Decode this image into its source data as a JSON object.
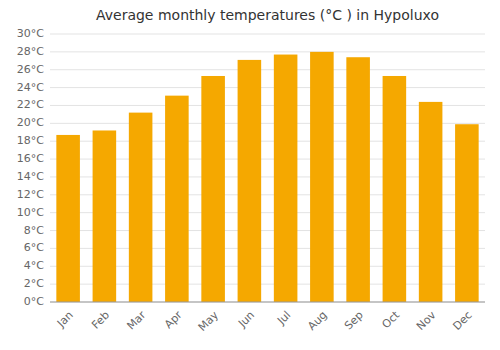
{
  "chart_data": {
    "type": "bar",
    "title": "Average monthly temperatures (°C ) in Hypoluxo",
    "categories": [
      "Jan",
      "Feb",
      "Mar",
      "Apr",
      "May",
      "Jun",
      "Jul",
      "Aug",
      "Sep",
      "Oct",
      "Nov",
      "Dec"
    ],
    "values": [
      18.7,
      19.2,
      21.2,
      23.1,
      25.3,
      27.1,
      27.7,
      28.0,
      27.4,
      25.3,
      22.4,
      19.9
    ],
    "color": "#F5A800",
    "ylim": [
      0,
      30
    ],
    "yticks": [
      {
        "value": 0,
        "label": "0°C"
      },
      {
        "value": 2,
        "label": "2°C"
      },
      {
        "value": 4,
        "label": "4°C"
      },
      {
        "value": 6,
        "label": "6°C"
      },
      {
        "value": 8,
        "label": "8°C"
      },
      {
        "value": 10,
        "label": "10°C"
      },
      {
        "value": 12,
        "label": "12°C"
      },
      {
        "value": 14,
        "label": "14°C"
      },
      {
        "value": 16,
        "label": "16°C"
      },
      {
        "value": 18,
        "label": "18°C"
      },
      {
        "value": 20,
        "label": "20°C"
      },
      {
        "value": 22,
        "label": "22°C"
      },
      {
        "value": 24,
        "label": "24°C"
      },
      {
        "value": 26,
        "label": "26°C"
      },
      {
        "value": 28,
        "label": "28°C"
      },
      {
        "value": 30,
        "label": "30°C"
      }
    ],
    "grid": true
  }
}
